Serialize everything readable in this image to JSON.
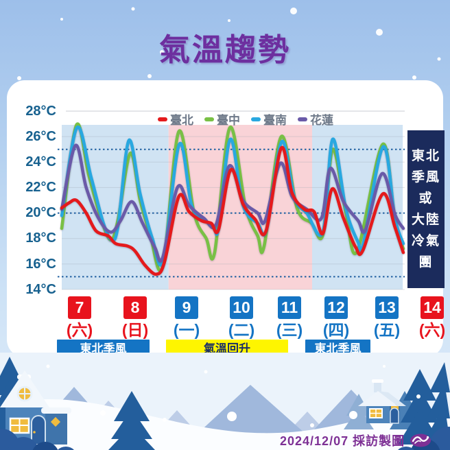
{
  "header": {
    "title": "氣溫趨勢"
  },
  "legend": [
    {
      "label": "臺北",
      "color": "#e41a1c"
    },
    {
      "label": "臺中",
      "color": "#79c045"
    },
    {
      "label": "臺南",
      "color": "#29a8e0"
    },
    {
      "label": "花蓮",
      "color": "#6a5aa8"
    }
  ],
  "y_axis": {
    "unit": "°C",
    "ticks": [
      "28°C",
      "26°C",
      "24°C",
      "22°C",
      "20°C",
      "18°C",
      "16°C",
      "14°C"
    ]
  },
  "days": [
    {
      "num": "7",
      "week": "(六)",
      "color": "#e8131d"
    },
    {
      "num": "8",
      "week": "(日)",
      "color": "#e8131d"
    },
    {
      "num": "9",
      "week": "(一)",
      "color": "#1474c4"
    },
    {
      "num": "10",
      "week": "(二)",
      "color": "#1474c4"
    },
    {
      "num": "11",
      "week": "(三)",
      "color": "#1474c4"
    },
    {
      "num": "12",
      "week": "(四)",
      "color": "#1474c4"
    },
    {
      "num": "13",
      "week": "(五)",
      "color": "#1474c4"
    },
    {
      "num": "14",
      "week": "(六)",
      "color": "#e8131d"
    }
  ],
  "bars": [
    {
      "label": "東北季風",
      "style": "blue"
    },
    {
      "label": "氣溫回升",
      "style": "yellow"
    },
    {
      "label": "東北季風",
      "style": "blue"
    }
  ],
  "side_box": {
    "text": "東北季風或大陸冷氣團",
    "lines": [
      "東北",
      "季風",
      "或",
      "大陸",
      "冷氣",
      "團"
    ]
  },
  "credit": {
    "text": "2024/12/07 採訪製圖",
    "logo": "cwa-logo"
  },
  "chart_data": {
    "type": "line",
    "title": "氣溫趨勢",
    "ylabel": "°C",
    "ylim": [
      14,
      28
    ],
    "y_ticks": [
      28,
      26,
      24,
      22,
      20,
      18,
      16,
      14
    ],
    "x_ticks": [
      7,
      8,
      9,
      10,
      11,
      12,
      13,
      14
    ],
    "x_tick_weekdays": [
      "(六)",
      "(日)",
      "(一)",
      "(二)",
      "(三)",
      "(四)",
      "(五)",
      "(六)"
    ],
    "dotted_reference_lines": [
      25,
      20,
      15
    ],
    "grid": true,
    "legend_position": "top",
    "background_regions": [
      {
        "from_day": 7.0,
        "to_day": 9.18,
        "color": "#d0e3f3",
        "meaning": "東北季風"
      },
      {
        "from_day": 9.18,
        "to_day": 12.11,
        "color": "#f9d3d7",
        "meaning": "氣溫回升"
      },
      {
        "from_day": 12.11,
        "to_day": 13.96,
        "color": "#d0e3f3",
        "meaning": "東北季風"
      }
    ],
    "periods": [
      {
        "label": "東北季風",
        "days": "7-8"
      },
      {
        "label": "氣溫回升",
        "days": "9-11"
      },
      {
        "label": "東北季風",
        "days": "12-13"
      }
    ],
    "right_note": "東北季風或大陸冷氣團",
    "series": [
      {
        "name": "臺中",
        "color": "#79c045",
        "points": [
          [
            7.0,
            18.8
          ],
          [
            7.3,
            26.9
          ],
          [
            7.55,
            23.0
          ],
          [
            7.8,
            19.6
          ],
          [
            8.0,
            17.9
          ],
          [
            8.15,
            19.5
          ],
          [
            8.4,
            24.7
          ],
          [
            8.6,
            21.0
          ],
          [
            8.8,
            18.4
          ],
          [
            9.06,
            15.8
          ],
          [
            9.39,
            26.4
          ],
          [
            9.7,
            20.0
          ],
          [
            9.95,
            18.0
          ],
          [
            10.12,
            16.9
          ],
          [
            10.43,
            26.7
          ],
          [
            10.75,
            20.5
          ],
          [
            11.0,
            18.2
          ],
          [
            11.13,
            17.4
          ],
          [
            11.48,
            26.0
          ],
          [
            11.8,
            20.4
          ],
          [
            12.1,
            19.2
          ],
          [
            12.33,
            18.3
          ],
          [
            12.53,
            25.0
          ],
          [
            12.8,
            20.0
          ],
          [
            13.03,
            17.0
          ],
          [
            13.55,
            25.4
          ],
          [
            13.8,
            19.3
          ],
          [
            13.97,
            17.2
          ]
        ]
      },
      {
        "name": "臺南",
        "color": "#29a8e0",
        "points": [
          [
            7.0,
            19.8
          ],
          [
            7.31,
            26.7
          ],
          [
            7.6,
            22.8
          ],
          [
            7.85,
            19.2
          ],
          [
            8.02,
            17.9
          ],
          [
            8.15,
            19.0
          ],
          [
            8.37,
            25.7
          ],
          [
            8.6,
            21.5
          ],
          [
            8.85,
            18.0
          ],
          [
            9.07,
            16.3
          ],
          [
            9.4,
            25.4
          ],
          [
            9.65,
            20.6
          ],
          [
            9.9,
            19.5
          ],
          [
            10.1,
            19.0
          ],
          [
            10.2,
            18.8
          ],
          [
            10.44,
            25.8
          ],
          [
            10.7,
            20.6
          ],
          [
            11.0,
            19.2
          ],
          [
            11.18,
            18.7
          ],
          [
            11.49,
            25.6
          ],
          [
            11.75,
            21.2
          ],
          [
            12.0,
            20.0
          ],
          [
            12.33,
            18.5
          ],
          [
            12.53,
            25.8
          ],
          [
            12.8,
            20.3
          ],
          [
            13.05,
            17.7
          ],
          [
            13.15,
            17.5
          ],
          [
            13.56,
            25.2
          ],
          [
            13.8,
            19.6
          ],
          [
            13.97,
            17.6
          ]
        ]
      },
      {
        "name": "花蓮",
        "color": "#6a5aa8",
        "points": [
          [
            7.0,
            20.3
          ],
          [
            7.28,
            25.3
          ],
          [
            7.5,
            22.0
          ],
          [
            7.75,
            19.6
          ],
          [
            8.0,
            18.5
          ],
          [
            8.2,
            19.4
          ],
          [
            8.43,
            20.9
          ],
          [
            8.65,
            19.2
          ],
          [
            8.9,
            17.3
          ],
          [
            9.06,
            16.5
          ],
          [
            9.36,
            22.0
          ],
          [
            9.6,
            20.6
          ],
          [
            9.9,
            19.6
          ],
          [
            10.15,
            19.1
          ],
          [
            10.42,
            23.7
          ],
          [
            10.7,
            21.0
          ],
          [
            11.0,
            20.0
          ],
          [
            11.15,
            19.4
          ],
          [
            11.46,
            23.9
          ],
          [
            11.7,
            21.3
          ],
          [
            12.0,
            20.3
          ],
          [
            12.3,
            19.6
          ],
          [
            12.48,
            23.5
          ],
          [
            12.75,
            20.9
          ],
          [
            13.05,
            19.4
          ],
          [
            13.2,
            18.7
          ],
          [
            13.54,
            23.1
          ],
          [
            13.8,
            19.9
          ],
          [
            13.97,
            18.8
          ]
        ]
      },
      {
        "name": "臺北",
        "color": "#e41a1c",
        "points": [
          [
            7.0,
            20.4
          ],
          [
            7.15,
            20.8
          ],
          [
            7.3,
            21.0
          ],
          [
            7.5,
            20.0
          ],
          [
            7.7,
            18.6
          ],
          [
            7.95,
            18.2
          ],
          [
            8.1,
            17.6
          ],
          [
            8.35,
            17.4
          ],
          [
            8.5,
            17.0
          ],
          [
            8.7,
            15.9
          ],
          [
            8.93,
            15.2
          ],
          [
            9.1,
            16.2
          ],
          [
            9.39,
            21.3
          ],
          [
            9.6,
            20.1
          ],
          [
            9.85,
            19.4
          ],
          [
            10.05,
            19.2
          ],
          [
            10.2,
            18.7
          ],
          [
            10.45,
            23.4
          ],
          [
            10.7,
            20.7
          ],
          [
            10.95,
            19.5
          ],
          [
            11.17,
            18.6
          ],
          [
            11.48,
            25.1
          ],
          [
            11.7,
            21.6
          ],
          [
            11.95,
            20.3
          ],
          [
            12.15,
            20.1
          ],
          [
            12.33,
            18.4
          ],
          [
            12.52,
            21.9
          ],
          [
            12.75,
            19.6
          ],
          [
            13.0,
            17.3
          ],
          [
            13.15,
            17.1
          ],
          [
            13.55,
            21.5
          ],
          [
            13.8,
            18.9
          ],
          [
            13.97,
            16.9
          ]
        ]
      }
    ]
  }
}
